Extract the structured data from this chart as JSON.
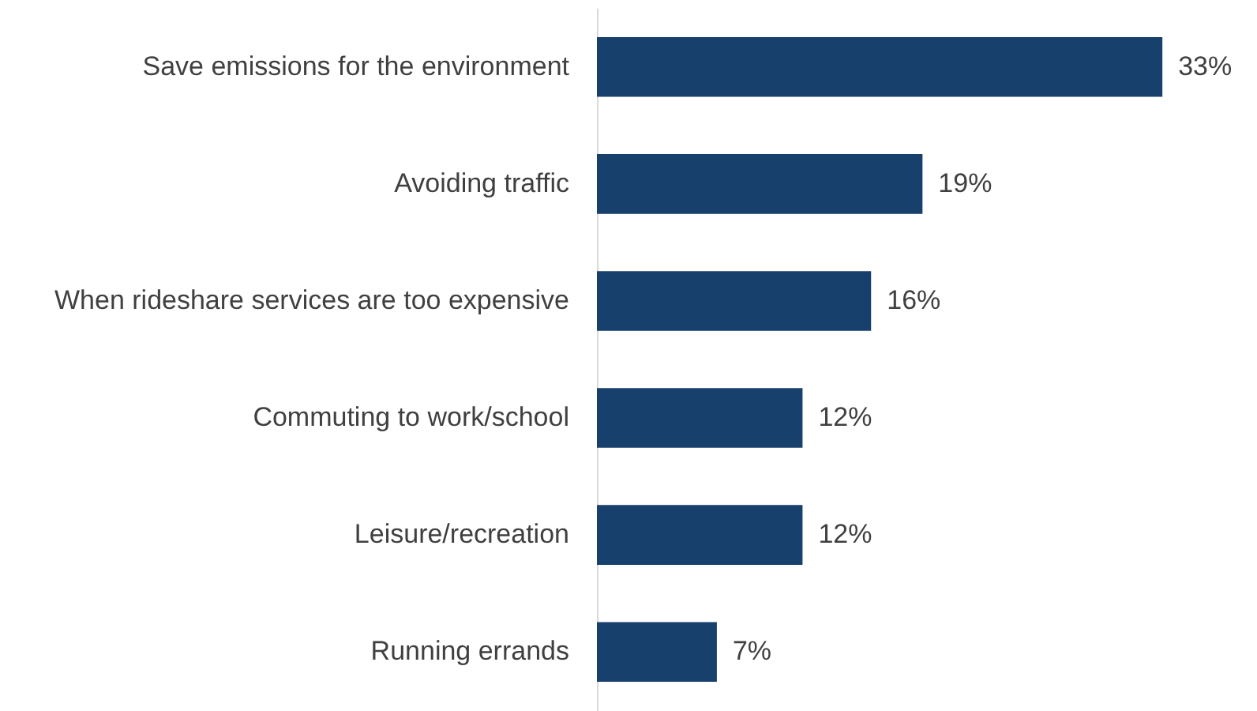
{
  "chart_data": {
    "type": "bar",
    "orientation": "horizontal",
    "categories": [
      "Save emissions for the environment",
      "Avoiding traffic",
      "When rideshare services are too expensive",
      "Commuting to work/school",
      "Leisure/recreation",
      "Running errands"
    ],
    "values": [
      33,
      19,
      16,
      12,
      12,
      7
    ],
    "color": "#17406d",
    "value_labels": [
      "33%",
      "19%",
      "16%",
      "12%",
      "12%",
      "7%"
    ]
  }
}
